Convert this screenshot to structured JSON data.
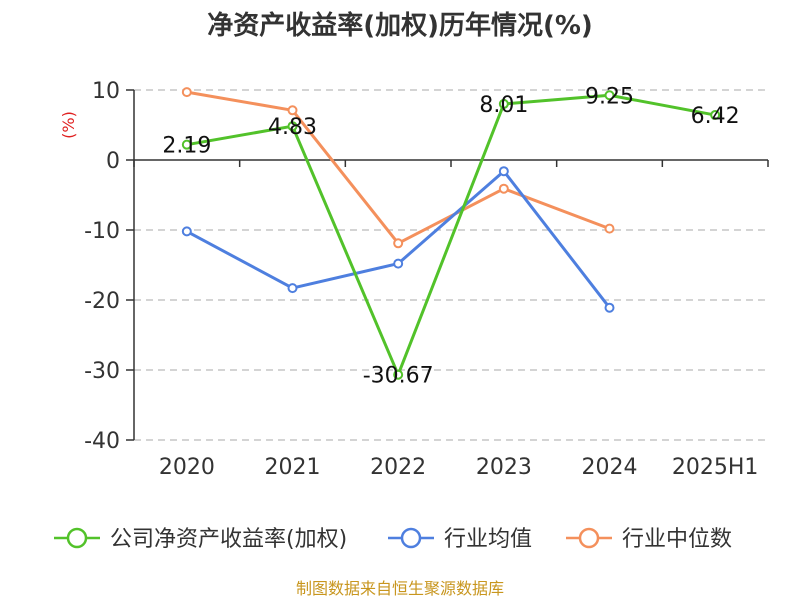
{
  "colors": {
    "company": "#52C22A",
    "avg": "#4E7FDF",
    "median": "#F4905C",
    "unit": "#E02020",
    "source": "#C8961E",
    "grid": "#BBBBBB",
    "axis": "#333333"
  },
  "chart_data": {
    "type": "line",
    "title": "净资产收益率(加权)历年情况(%)",
    "ylabel": "(%)",
    "categories": [
      "2020",
      "2021",
      "2022",
      "2023",
      "2024",
      "2025H1"
    ],
    "ylim": [
      -40,
      10
    ],
    "yticks": [
      10,
      0,
      -10,
      -20,
      -30,
      -40
    ],
    "grid": true,
    "legend_position": "bottom",
    "series": [
      {
        "name": "公司净资产收益率(加权)",
        "color_key": "company",
        "values": [
          2.19,
          4.83,
          -30.67,
          8.01,
          9.25,
          6.42
        ],
        "labels": [
          "2.19",
          "4.83",
          "-30.67",
          "8.01",
          "9.25",
          "6.42"
        ]
      },
      {
        "name": "行业均值",
        "color_key": "avg",
        "values": [
          -10.2,
          -18.3,
          -14.8,
          -1.6,
          -21.1,
          null
        ]
      },
      {
        "name": "行业中位数",
        "color_key": "median",
        "values": [
          9.7,
          7.1,
          -11.9,
          -4.1,
          -9.8,
          null
        ]
      }
    ],
    "source": "制图数据来自恒生聚源数据库"
  }
}
